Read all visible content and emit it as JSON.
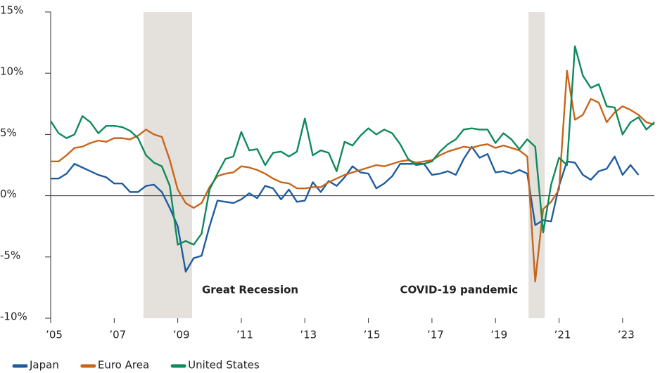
{
  "chart_data": {
    "type": "line",
    "x": [
      2005,
      2005.25,
      2005.5,
      2005.75,
      2006,
      2006.25,
      2006.5,
      2006.75,
      2007,
      2007.25,
      2007.5,
      2007.75,
      2008,
      2008.25,
      2008.5,
      2008.75,
      2009,
      2009.25,
      2009.5,
      2009.75,
      2010,
      2010.25,
      2010.5,
      2010.75,
      2011,
      2011.25,
      2011.5,
      2011.75,
      2012,
      2012.25,
      2012.5,
      2012.75,
      2013,
      2013.25,
      2013.5,
      2013.75,
      2014,
      2014.25,
      2014.5,
      2014.75,
      2015,
      2015.25,
      2015.5,
      2015.75,
      2016,
      2016.25,
      2016.5,
      2016.75,
      2017,
      2017.25,
      2017.5,
      2017.75,
      2018,
      2018.25,
      2018.5,
      2018.75,
      2019,
      2019.25,
      2019.5,
      2019.75,
      2020,
      2020.25,
      2020.5,
      2020.75,
      2021,
      2021.25,
      2021.5,
      2021.75,
      2022,
      2022.25,
      2022.5,
      2022.75,
      2023,
      2023.25,
      2023.5,
      2023.75,
      2024
    ],
    "series": [
      {
        "name": "Japan",
        "color": "#1f5c9e",
        "values": [
          1.4,
          1.4,
          1.8,
          2.6,
          2.3,
          2.0,
          1.7,
          1.5,
          1.0,
          1.0,
          0.3,
          0.3,
          0.8,
          0.9,
          0.3,
          -1.0,
          -2.5,
          -6.2,
          -5.1,
          -4.9,
          -2.5,
          -0.4,
          -0.5,
          -0.6,
          -0.3,
          0.2,
          -0.2,
          0.8,
          0.6,
          -0.3,
          0.5,
          -0.5,
          -0.4,
          1.1,
          0.3,
          1.2,
          0.8,
          1.5,
          2.4,
          1.9,
          1.8,
          0.6,
          1.0,
          1.6,
          2.6,
          2.6,
          2.6,
          2.6,
          1.7,
          1.8,
          2.0,
          1.7,
          3.0,
          4.0,
          3.1,
          3.4,
          1.9,
          2.0,
          1.8,
          2.1,
          1.8,
          -2.4,
          -2.0,
          -2.1,
          0.8,
          2.8,
          2.7,
          1.7,
          1.3,
          2.0,
          2.2,
          3.2,
          1.7,
          2.5,
          1.7,
          null,
          null
        ]
      },
      {
        "name": "Euro Area",
        "color": "#c8651b",
        "values": [
          2.8,
          2.8,
          3.3,
          3.9,
          4.0,
          4.3,
          4.5,
          4.4,
          4.7,
          4.7,
          4.6,
          4.9,
          5.4,
          5.0,
          4.8,
          2.9,
          0.5,
          -0.6,
          -1.0,
          -0.6,
          0.7,
          1.6,
          1.8,
          1.9,
          2.4,
          2.3,
          2.1,
          1.8,
          1.4,
          1.1,
          1.0,
          0.6,
          0.6,
          0.7,
          0.7,
          1.1,
          1.4,
          1.7,
          1.9,
          2.1,
          2.3,
          2.5,
          2.4,
          2.6,
          2.8,
          2.9,
          2.7,
          2.8,
          2.9,
          3.3,
          3.6,
          3.8,
          4.0,
          3.9,
          4.1,
          4.2,
          3.9,
          4.1,
          3.9,
          3.7,
          3.2,
          -7.0,
          -1.1,
          -0.5,
          0.5,
          10.2,
          6.2,
          6.6,
          7.9,
          7.6,
          6.0,
          6.8,
          7.3,
          7.0,
          6.6,
          6.0,
          5.8
        ]
      },
      {
        "name": "United States",
        "color": "#0f8a5a",
        "values": [
          6.1,
          5.1,
          4.7,
          5.0,
          6.5,
          6.0,
          5.1,
          5.7,
          5.7,
          5.6,
          5.3,
          4.7,
          3.3,
          2.7,
          2.4,
          0.8,
          -4.0,
          -3.7,
          -4.0,
          -3.1,
          0.5,
          1.8,
          3.0,
          3.2,
          5.2,
          3.7,
          3.8,
          2.5,
          3.5,
          3.6,
          3.2,
          3.6,
          6.3,
          3.3,
          3.7,
          3.5,
          2.0,
          4.4,
          4.1,
          4.9,
          5.5,
          5.0,
          5.4,
          5.1,
          4.2,
          3.0,
          2.5,
          2.6,
          2.8,
          3.6,
          4.2,
          4.6,
          5.4,
          5.5,
          5.4,
          5.4,
          4.3,
          5.1,
          4.6,
          3.8,
          4.6,
          4.0,
          -3.0,
          0.9,
          3.1,
          2.5,
          12.2,
          9.8,
          8.8,
          9.1,
          7.3,
          7.2,
          5.0,
          6.0,
          6.4,
          5.4,
          6.0
        ]
      }
    ],
    "xlim": [
      2005,
      2024
    ],
    "xticks": [
      {
        "value": 2005,
        "label": "’05"
      },
      {
        "value": 2007,
        "label": "’07"
      },
      {
        "value": 2009,
        "label": "’09"
      },
      {
        "value": 2011,
        "label": "’11"
      },
      {
        "value": 2013,
        "label": "’13"
      },
      {
        "value": 2015,
        "label": "’15"
      },
      {
        "value": 2017,
        "label": "’17"
      },
      {
        "value": 2019,
        "label": "’19"
      },
      {
        "value": 2021,
        "label": "’21"
      },
      {
        "value": 2023,
        "label": "’23"
      }
    ],
    "ylim": [
      -10,
      15
    ],
    "yticks": [
      {
        "value": -10,
        "label": "-10%"
      },
      {
        "value": -5,
        "label": "-5%"
      },
      {
        "value": 0,
        "label": "0%"
      },
      {
        "value": 5,
        "label": "5%"
      },
      {
        "value": 10,
        "label": "10%"
      },
      {
        "value": 15,
        "label": "15%"
      }
    ],
    "shaded_periods": [
      {
        "label": "Great Recession",
        "start": 2007.92,
        "end": 2009.45
      },
      {
        "label": "COVID-19 pandemic",
        "start": 2020.04,
        "end": 2020.55
      }
    ],
    "legend": "bottom-left",
    "grid": false
  }
}
